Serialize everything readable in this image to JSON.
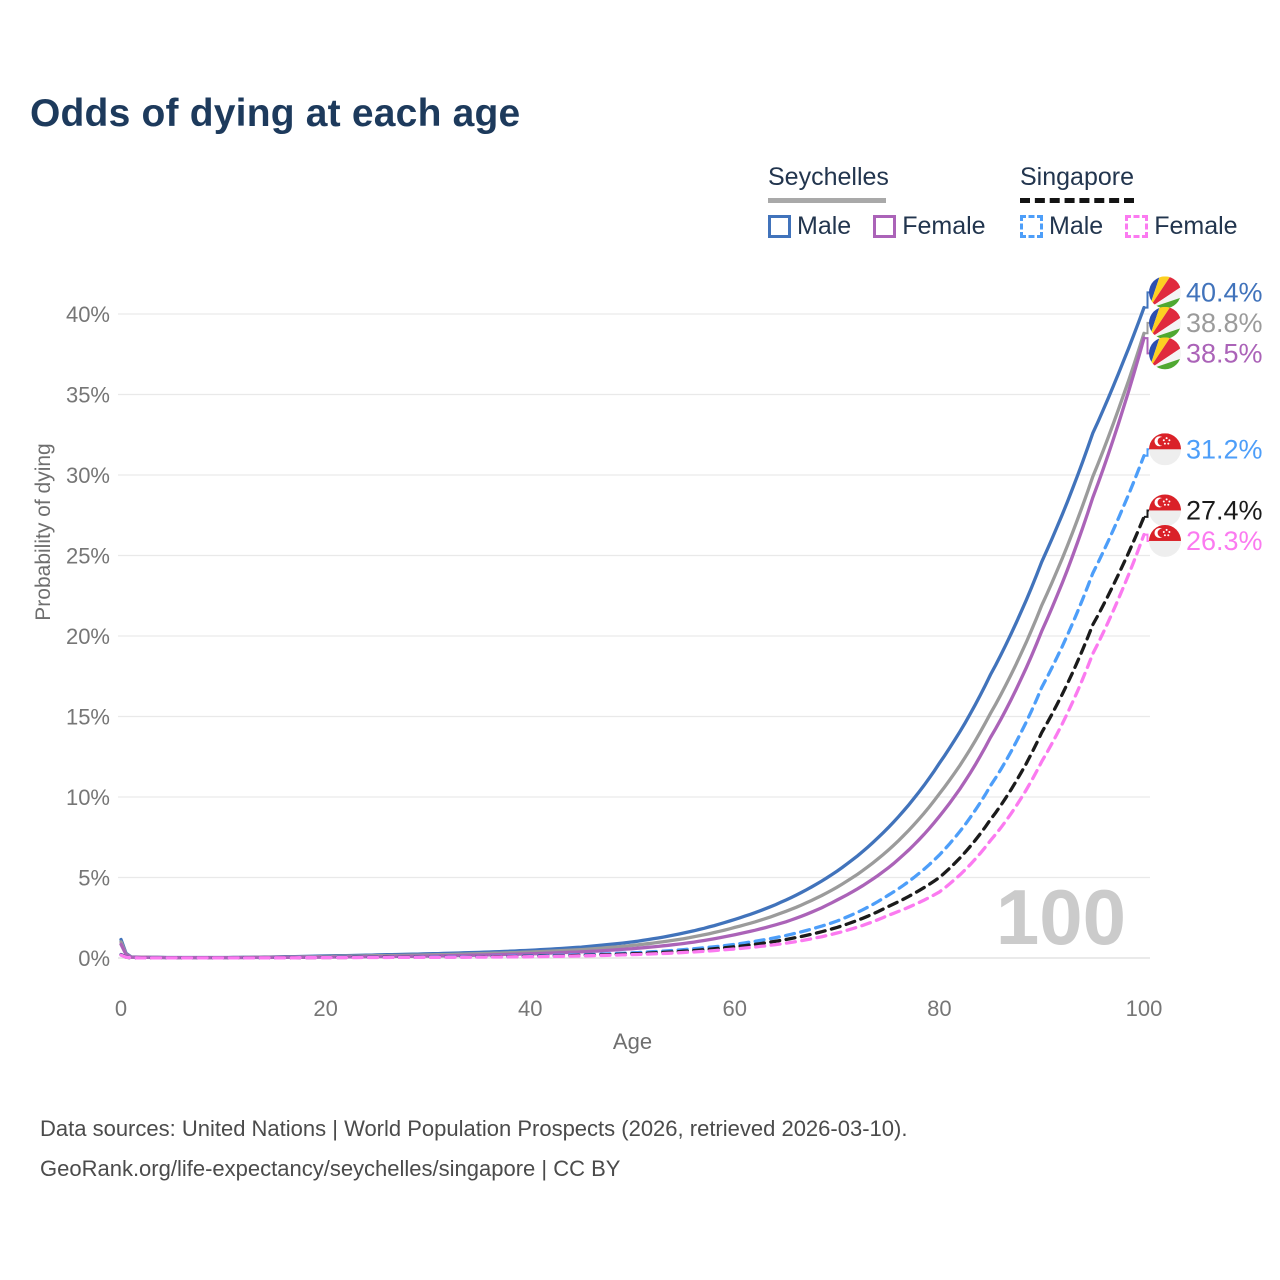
{
  "header": {
    "title": "Odds of dying at each age"
  },
  "legend": {
    "groups": [
      {
        "country": "Seychelles",
        "line_style": "solid",
        "underline_color": "#a9a9a9",
        "items": [
          {
            "label": "Male",
            "color": "#4173bb"
          },
          {
            "label": "Female",
            "color": "#ab63b8"
          }
        ]
      },
      {
        "country": "Singapore",
        "line_style": "dashed",
        "underline_color": "#141414",
        "items": [
          {
            "label": "Male",
            "color": "#4d9ef9"
          },
          {
            "label": "Female",
            "color": "#fb7af0"
          }
        ]
      }
    ]
  },
  "chart_data": {
    "type": "line",
    "title": "Odds of dying at each age",
    "xlabel": "Age",
    "ylabel": "Probability of dying",
    "xlim": [
      0,
      100
    ],
    "ylim_percent": [
      0,
      41.5
    ],
    "grid": "horizontal-only",
    "x_ticks": [
      0,
      20,
      40,
      60,
      80,
      100
    ],
    "x_tick_labels": [
      "0",
      "20",
      "40",
      "60",
      "80",
      "100"
    ],
    "y_ticks_percent": [
      0,
      5,
      10,
      15,
      20,
      25,
      30,
      35,
      40
    ],
    "y_tick_labels": [
      "0%",
      "5%",
      "10%",
      "15%",
      "20%",
      "25%",
      "30%",
      "35%",
      "40%"
    ],
    "watermark": "100",
    "ages": [
      0,
      1,
      5,
      10,
      15,
      20,
      25,
      30,
      35,
      40,
      45,
      50,
      55,
      60,
      65,
      70,
      75,
      80,
      85,
      90,
      95,
      100
    ],
    "series": [
      {
        "name": "Seychelles Male",
        "country": "Seychelles",
        "sex": "Male",
        "style": "solid",
        "color": "#4173bb",
        "flag": "seychelles",
        "end_label": "40.4%",
        "end_value_percent": 40.4,
        "values_percent": [
          1.15,
          0.07,
          0.03,
          0.03,
          0.07,
          0.13,
          0.19,
          0.26,
          0.35,
          0.48,
          0.68,
          1.0,
          1.55,
          2.4,
          3.6,
          5.4,
          8.1,
          12.1,
          17.6,
          24.6,
          32.6,
          40.4
        ]
      },
      {
        "name": "Seychelles Both sexes",
        "country": "Seychelles",
        "sex": "Both",
        "style": "solid",
        "color": "#9b9b9b",
        "flag": "seychelles",
        "end_label": "38.8%",
        "end_value_percent": 38.8,
        "values_percent": [
          1.0,
          0.06,
          0.025,
          0.025,
          0.05,
          0.095,
          0.14,
          0.19,
          0.27,
          0.37,
          0.52,
          0.78,
          1.2,
          1.9,
          2.9,
          4.4,
          6.7,
          10.2,
          15.2,
          21.9,
          29.9,
          38.8
        ]
      },
      {
        "name": "Seychelles Female",
        "country": "Seychelles",
        "sex": "Female",
        "style": "solid",
        "color": "#ab63b8",
        "flag": "seychelles",
        "end_label": "38.5%",
        "end_value_percent": 38.5,
        "values_percent": [
          0.85,
          0.05,
          0.02,
          0.02,
          0.035,
          0.055,
          0.085,
          0.12,
          0.18,
          0.26,
          0.38,
          0.58,
          0.9,
          1.45,
          2.25,
          3.6,
          5.6,
          8.8,
          13.7,
          20.3,
          28.6,
          38.5
        ]
      },
      {
        "name": "Singapore Male",
        "country": "Singapore",
        "sex": "Male",
        "style": "dashed",
        "color": "#4d9ef9",
        "flag": "singapore",
        "end_label": "31.2%",
        "end_value_percent": 31.2,
        "values_percent": [
          0.22,
          0.015,
          0.008,
          0.008,
          0.02,
          0.04,
          0.055,
          0.07,
          0.09,
          0.13,
          0.2,
          0.32,
          0.52,
          0.85,
          1.4,
          2.3,
          3.9,
          6.4,
          10.7,
          16.8,
          23.9,
          31.2
        ]
      },
      {
        "name": "Singapore Both sexes",
        "country": "Singapore",
        "sex": "Both",
        "style": "dashed",
        "color": "#1b1b1b",
        "flag": "singapore",
        "end_label": "27.4%",
        "end_value_percent": 27.4,
        "values_percent": [
          0.2,
          0.012,
          0.007,
          0.007,
          0.015,
          0.03,
          0.04,
          0.055,
          0.07,
          0.1,
          0.16,
          0.26,
          0.42,
          0.7,
          1.15,
          1.9,
          3.2,
          5.0,
          8.6,
          14.0,
          20.7,
          27.4
        ]
      },
      {
        "name": "Singapore Female",
        "country": "Singapore",
        "sex": "Female",
        "style": "dashed",
        "color": "#fb7af0",
        "flag": "singapore",
        "end_label": "26.3%",
        "end_value_percent": 26.3,
        "values_percent": [
          0.18,
          0.01,
          0.006,
          0.006,
          0.012,
          0.022,
          0.032,
          0.042,
          0.055,
          0.08,
          0.13,
          0.21,
          0.34,
          0.56,
          0.92,
          1.55,
          2.65,
          4.1,
          7.3,
          12.2,
          18.9,
          26.3
        ]
      }
    ]
  },
  "footer": {
    "line1": "Data sources: United Nations | World Population Prospects (2026, retrieved 2026-03-10).",
    "line2": "GeoRank.org/life-expectancy/seychelles/singapore | CC BY"
  }
}
